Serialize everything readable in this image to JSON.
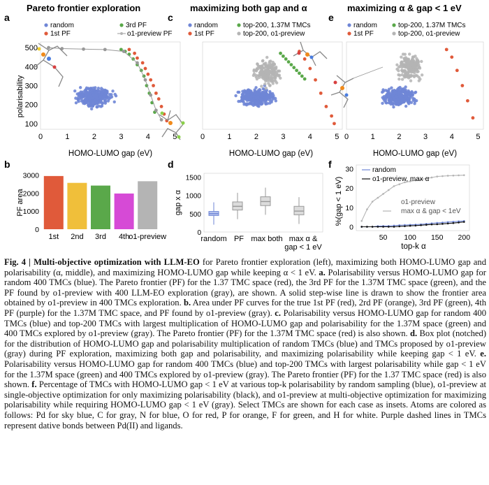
{
  "figure": {
    "panel_letters": [
      "a",
      "b",
      "c",
      "d",
      "e",
      "f"
    ],
    "titles": {
      "a": "Pareto frontier exploration",
      "c": "maximizing both gap and α",
      "e": "maximizing α & gap < 1 eV"
    },
    "legends": {
      "a": [
        "random",
        "1st PF",
        "3rd PF",
        "o1-preview PF"
      ],
      "c": [
        "random",
        "1st PF",
        "top-200, 1.37M TMCs",
        "top-200, o1-preview"
      ],
      "e": [
        "random",
        "1st PF",
        "top-200, 1.37M TMCs",
        "top-200, o1-preview"
      ],
      "f": [
        "random",
        "o1-preview, max α",
        "o1-preview",
        "max α & gap < 1eV"
      ]
    },
    "colors": {
      "random": "#6f86d6",
      "pf1": "#e05a3a",
      "pf2": "#f0bf3a",
      "pf3": "#5aa84a",
      "pf4": "#d64ad6",
      "o1": "#b4b4b4",
      "black": "#111111"
    }
  },
  "chart_data": [
    {
      "panel": "a",
      "type": "scatter",
      "xlabel": "HOMO-LUMO gap (eV)",
      "ylabel": "polarisability",
      "xlim": [
        0,
        5.2
      ],
      "ylim": [
        70,
        530
      ],
      "xticks": [
        "0",
        "1",
        "2",
        "3",
        "4",
        "5"
      ],
      "yticks": [
        "100",
        "200",
        "300",
        "400",
        "500"
      ],
      "series": [
        {
          "name": "1st PF",
          "x": [
            3.3,
            3.5,
            3.6,
            3.8,
            3.9,
            4.0,
            4.1,
            4.2,
            4.3,
            4.4,
            4.5,
            4.6,
            4.7
          ],
          "y": [
            490,
            470,
            445,
            420,
            390,
            360,
            330,
            300,
            260,
            230,
            190,
            150,
            115
          ]
        },
        {
          "name": "3rd PF",
          "x": [
            3.0,
            3.15,
            3.3,
            3.45,
            3.6,
            3.75,
            3.85,
            3.95,
            4.05,
            4.15,
            4.25
          ],
          "y": [
            490,
            480,
            465,
            440,
            410,
            380,
            350,
            300,
            260,
            210,
            160
          ]
        },
        {
          "name": "o1-preview PF",
          "x": [
            0.3,
            0.8,
            1.6,
            2.4,
            3.1,
            3.6,
            3.9,
            4.1,
            4.3,
            4.5
          ],
          "y": [
            500,
            495,
            492,
            490,
            480,
            420,
            330,
            250,
            170,
            120
          ]
        }
      ]
    },
    {
      "panel": "b",
      "type": "bar",
      "ylabel": "PF area",
      "categories": [
        "1st",
        "2nd",
        "3rd",
        "4th",
        "o1-preview"
      ],
      "values": [
        2950,
        2570,
        2420,
        1980,
        2660
      ],
      "ylim": [
        0,
        3100
      ],
      "yticks": [
        "0",
        "1000",
        "2000",
        "3000"
      ]
    },
    {
      "panel": "c",
      "type": "scatter",
      "xlabel": "HOMO-LUMO gap (eV)",
      "xlim": [
        0,
        5.2
      ],
      "ylim": [
        70,
        530
      ],
      "xticks": [
        "0",
        "1",
        "2",
        "3",
        "4",
        "5"
      ],
      "series": [
        {
          "name": "1st PF",
          "x": [
            3.6,
            3.8,
            4.0,
            4.2,
            4.4,
            4.6,
            4.8,
            4.9
          ],
          "y": [
            480,
            440,
            390,
            330,
            260,
            190,
            140,
            100
          ]
        },
        {
          "name": "top-200, 1.37M TMCs",
          "x": [
            2.9,
            3.0,
            3.1,
            3.2,
            3.3,
            3.4,
            3.5,
            3.6,
            3.7,
            3.8
          ],
          "y": [
            470,
            455,
            440,
            425,
            410,
            395,
            380,
            365,
            350,
            335
          ]
        }
      ]
    },
    {
      "panel": "d",
      "type": "box",
      "ylabel": "gap x α",
      "categories": [
        "random",
        "PF",
        "max both",
        "max α & gap < 1 eV"
      ],
      "medians": [
        500,
        700,
        830,
        570
      ],
      "q1": [
        450,
        600,
        720,
        470
      ],
      "q3": [
        560,
        820,
        960,
        700
      ],
      "ylim": [
        0,
        1600
      ],
      "yticks": [
        "0",
        "500",
        "1000",
        "1500"
      ]
    },
    {
      "panel": "e",
      "type": "scatter",
      "xlabel": "HOMO-LUMO gap (eV)",
      "xlim": [
        0,
        5.2
      ],
      "ylim": [
        70,
        530
      ],
      "xticks": [
        "0",
        "1",
        "2",
        "3",
        "4",
        "5"
      ],
      "series": [
        {
          "name": "1st PF",
          "x": [
            3.8,
            4.0,
            4.2,
            4.4,
            4.6,
            4.8
          ],
          "y": [
            490,
            450,
            380,
            300,
            220,
            130
          ]
        }
      ]
    },
    {
      "panel": "f",
      "type": "line",
      "xlabel": "top-k α",
      "ylabel": "%(gap < 1 eV)",
      "xlim": [
        0,
        210
      ],
      "ylim": [
        -2,
        32
      ],
      "xticks": [
        "50",
        "100",
        "150",
        "200"
      ],
      "yticks": [
        "0",
        "10",
        "20",
        "30"
      ],
      "x": [
        10,
        20,
        30,
        40,
        50,
        60,
        70,
        80,
        90,
        100,
        110,
        120,
        130,
        140,
        150,
        160,
        170,
        180,
        190,
        200
      ],
      "series": [
        {
          "name": "random",
          "values": [
            0,
            0,
            0,
            0.3,
            0.4,
            0.4,
            0.6,
            0.8,
            0.9,
            1.0,
            1.1,
            1.3,
            1.5,
            1.8,
            2,
            2.2,
            2.4,
            2.6,
            2.8,
            3
          ]
        },
        {
          "name": "o1-preview, max α",
          "values": [
            0,
            0,
            0,
            0,
            0,
            0,
            0,
            0.2,
            0.3,
            0.5,
            0.6,
            0.8,
            1.0,
            1.2,
            1.3,
            1.5,
            1.7,
            1.9,
            2.2,
            2.5
          ]
        },
        {
          "name": "max α & gap < 1eV",
          "values": [
            3,
            9,
            13,
            15,
            17,
            19,
            21,
            22,
            23,
            23.5,
            24,
            24.5,
            25,
            25.5,
            26,
            26.2,
            26.4,
            26.5,
            26.6,
            26.7
          ]
        }
      ]
    }
  ],
  "caption": {
    "fig_label": "Fig. 4 |",
    "fig_title": "Multi-objective optimization with LLM-EO",
    "intro": "for Pareto frontier exploration (left), maximizing both HOMO-LUMO gap and polarisability (α, middle), and maximizing HOMO-LUMO gap while keeping α < 1 eV.",
    "a_label": "a.",
    "a_text": "Polarisability versus HOMO-LUMO gap for random 400 TMCs (blue). The Pareto frontier (PF) for the 1.37 TMC space (red), the 3rd PF for the 1.37M TMC space (green), and the PF found by o1-preview with 400 LLM-EO exploration (gray), are shown. A solid step-wise line is drawn to show the frontier area obtained by o1-preview in 400 TMCs exploration.",
    "b_label": "b.",
    "b_text": "Area under PF curves for the true 1st PF (red), 2rd PF (orange), 3rd PF (green), 4th PF (purple) for the 1.37M TMC space, and PF found by o1-preview (gray).",
    "c_label": "c.",
    "c_text": "Polarisability versus HOMO-LUMO gap for random 400 TMCs (blue) and top-200 TMCs with largest multiplication of HOMO-LUMO gap and polarisability for the 1.37M space (green) and 400 TMCs explored by o1-preview (gray). The Pareto frontier (PF) for the 1.37M TMC space (red) is also shown.",
    "d_label": "d.",
    "d_text": "Box plot (notched) for the distribution of HOMO-LUMO gap and polarisability multiplication of random TMCs (blue) and TMCs proposed by o1-preview (gray) during PF exploration, maximizing both gap and polarisability, and maximizing polarisability while keeping gap < 1 eV.",
    "e_label": "e.",
    "e_text": "Polarisability versus HOMO-LUMO gap for random 400 TMCs (blue) and top-200 TMCs with largest polarisability while gap < 1 eV for the 1.37M space (green) and 400 TMCs explored by o1-preview (gray). The Pareto frontier (PF) for the 1.37 TMC space (red) is also shown.",
    "f_label": "f.",
    "f_text": "Percentage of TMCs with HOMO-LUMO gap < 1 eV at various top-k polarisability by random sampling (blue), o1-preview at single-objective optimization for only maximizing polarisability (black), and o1-preview at multi-objective optimization for maximizing polarisability while requiring HOMO-LUMO gap < 1 eV (gray). Select TMCs are shown for each case as insets. Atoms are colored as follows: Pd for sky blue, C for gray, N for blue, O for red, P for orange, F for green, and H for white. Purple dashed lines in TMCs represent dative bonds between Pd(II) and ligands."
  }
}
